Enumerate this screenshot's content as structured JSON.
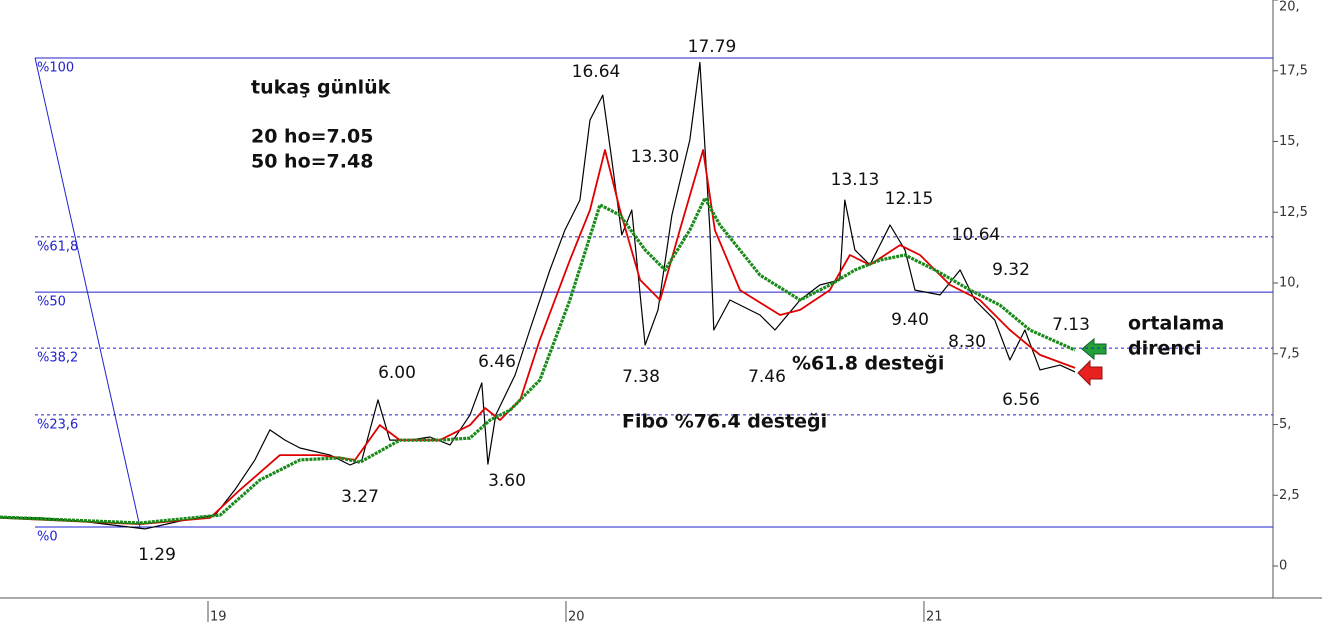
{
  "chart_data": {
    "type": "line",
    "xlim": [
      2018.419,
      2021.975
    ],
    "ylim": [
      -1.13,
      20
    ],
    "xticks": [
      {
        "value": 2019,
        "label": "19"
      },
      {
        "value": 2020,
        "label": "20"
      },
      {
        "value": 2021,
        "label": "21"
      }
    ],
    "yticks": [
      0,
      {
        "value": 2.5,
        "label": "2,5"
      },
      {
        "value": 5,
        "label": "5,"
      },
      {
        "value": 7.5,
        "label": "7,5"
      },
      {
        "value": 10,
        "label": "10,"
      },
      {
        "value": 12.5,
        "label": "12,5"
      },
      {
        "value": 15,
        "label": "15,"
      },
      {
        "value": 17.5,
        "label": "17,5"
      },
      {
        "value": 20,
        "label": "20,"
      }
    ],
    "series": [
      {
        "color": "#000000",
        "width": 1.2,
        "x": [
          2018.419,
          2018.531,
          2018.642,
          2018.824,
          2018.922,
          2019.02,
          2019.075,
          2019.131,
          2019.173,
          2019.215,
          2019.257,
          2019.341,
          2019.397,
          2019.43,
          2019.475,
          2019.508,
          2019.564,
          2019.62,
          2019.676,
          2019.732,
          2019.765,
          2019.782,
          2019.804,
          2019.858,
          2019.899,
          2019.955,
          2019.997,
          2020.039,
          2020.067,
          2020.103,
          2020.128,
          2020.156,
          2020.184,
          2020.221,
          2020.257,
          2020.296,
          2020.346,
          2020.374,
          2020.402,
          2020.413,
          2020.458,
          2020.542,
          2020.584,
          2020.654,
          2020.709,
          2020.765,
          2020.779,
          2020.807,
          2020.849,
          2020.905,
          2020.947,
          2020.975,
          2021.045,
          2021.101,
          2021.142,
          2021.198,
          2021.24,
          2021.282,
          2021.324,
          2021.38,
          2021.422
        ],
        "values": [
          1.73,
          1.7,
          1.59,
          1.31,
          1.59,
          1.8,
          2.69,
          3.75,
          4.81,
          4.45,
          4.17,
          3.92,
          3.57,
          3.75,
          5.87,
          4.45,
          4.45,
          4.56,
          4.28,
          5.34,
          6.47,
          3.6,
          5.34,
          6.75,
          8.34,
          10.46,
          11.87,
          12.93,
          15.76,
          16.64,
          14.35,
          11.7,
          12.58,
          7.81,
          9.05,
          12.4,
          15.05,
          17.79,
          11.87,
          8.34,
          9.4,
          8.87,
          8.34,
          9.4,
          9.93,
          10.11,
          12.93,
          11.17,
          10.64,
          12.05,
          11.17,
          9.75,
          9.58,
          10.46,
          9.4,
          8.69,
          7.28,
          8.34,
          6.93,
          7.1,
          6.86
        ]
      },
      {
        "color": "#e00000",
        "width": 1.8,
        "x": [
          2018.419,
          2018.81,
          2019.006,
          2019.089,
          2019.201,
          2019.313,
          2019.411,
          2019.48,
          2019.536,
          2019.648,
          2019.732,
          2019.774,
          2019.816,
          2019.872,
          2019.927,
          2020.011,
          2020.067,
          2020.109,
          2020.151,
          2020.207,
          2020.263,
          2020.318,
          2020.383,
          2020.416,
          2020.486,
          2020.598,
          2020.654,
          2020.737,
          2020.793,
          2020.849,
          2020.933,
          2020.989,
          2021.073,
          2021.156,
          2021.24,
          2021.324,
          2021.422
        ],
        "values": [
          1.7,
          1.48,
          1.7,
          2.69,
          3.92,
          3.92,
          3.75,
          4.98,
          4.45,
          4.45,
          4.98,
          5.58,
          5.16,
          5.87,
          7.99,
          10.81,
          12.58,
          14.7,
          12.58,
          10.11,
          9.4,
          11.87,
          14.7,
          11.87,
          9.75,
          8.87,
          9.05,
          9.75,
          10.99,
          10.64,
          11.34,
          10.99,
          9.93,
          9.4,
          8.34,
          7.46,
          7.0
        ]
      },
      {
        "color": "#1a8a1a",
        "width": 3.2,
        "x": [
          2018.419,
          2018.81,
          2019.034,
          2019.145,
          2019.257,
          2019.369,
          2019.425,
          2019.536,
          2019.648,
          2019.732,
          2019.788,
          2019.844,
          2019.927,
          2020.011,
          2020.095,
          2020.151,
          2020.221,
          2020.277,
          2020.346,
          2020.388,
          2020.43,
          2020.542,
          2020.654,
          2020.737,
          2020.807,
          2020.877,
          2020.947,
          2021.031,
          2021.129,
          2021.212,
          2021.296,
          2021.422
        ],
        "values": [
          1.73,
          1.52,
          1.8,
          3.04,
          3.75,
          3.82,
          3.67,
          4.45,
          4.45,
          4.52,
          5.16,
          5.51,
          6.57,
          9.4,
          12.76,
          12.4,
          11.17,
          10.46,
          11.87,
          13.0,
          12.05,
          10.28,
          9.4,
          9.93,
          10.46,
          10.81,
          10.99,
          10.46,
          9.75,
          9.22,
          8.34,
          7.63
        ]
      }
    ],
    "fibo": {
      "color": "#2222cc",
      "trend_x": [
        2018.517,
        2018.81
      ],
      "levels": [
        {
          "label": "%100",
          "value": 17.95,
          "dashed": false
        },
        {
          "label": "%61,8",
          "value": 11.63,
          "dashed": true
        },
        {
          "label": "%50",
          "value": 9.68,
          "dashed": false
        },
        {
          "label": "%38,2",
          "value": 7.7,
          "dashed": true
        },
        {
          "label": "%23,6",
          "value": 5.34,
          "dashed": true
        },
        {
          "label": "%0",
          "value": 1.38,
          "dashed": false
        }
      ]
    },
    "price_labels": [
      "1.29",
      "3.27",
      "6.00",
      "6.46",
      "3.60",
      "16.64",
      "17.79",
      "13.30",
      "7.38",
      "7.46",
      "13.13",
      "12.15",
      "10.64",
      "9.32",
      "9.40",
      "8.30",
      "7.13",
      "6.56"
    ],
    "annotations": [
      "tukaş günlük",
      "20 ho=7.05",
      "50 ho=7.48",
      "%61.8 desteği",
      "Fibo %76.4 desteği",
      "ortalama",
      "direnci"
    ]
  }
}
